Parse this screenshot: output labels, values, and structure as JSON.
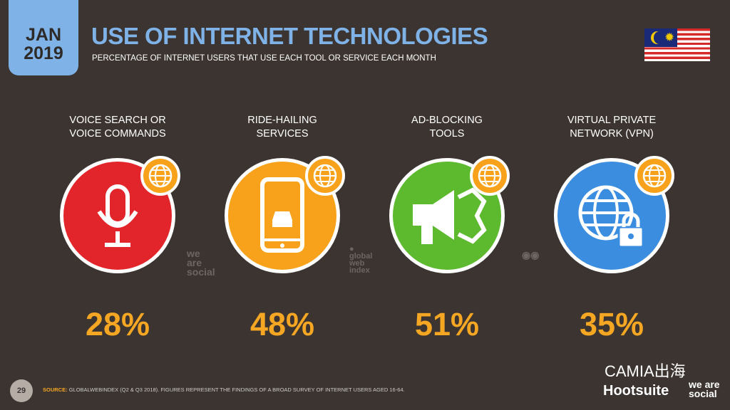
{
  "header": {
    "date_month": "JAN",
    "date_year": "2019",
    "title": "USE OF INTERNET TECHNOLOGIES",
    "subtitle": "PERCENTAGE OF INTERNET USERS THAT USE EACH TOOL OR SERVICE EACH MONTH"
  },
  "items": [
    {
      "label_1": "VOICE SEARCH OR",
      "label_2": "VOICE COMMANDS",
      "value": "28%",
      "color": "#e2252b",
      "icon": "microphone-icon"
    },
    {
      "label_1": "RIDE-HAILING",
      "label_2": "SERVICES",
      "value": "48%",
      "color": "#f7a21a",
      "icon": "smartphone-car-icon"
    },
    {
      "label_1": "AD-BLOCKING",
      "label_2": "TOOLS",
      "value": "51%",
      "color": "#5dba2f",
      "icon": "ad-blocking-megaphone-icon"
    },
    {
      "label_1": "VIRTUAL PRIVATE",
      "label_2": "NETWORK (VPN)",
      "value": "35%",
      "color": "#3b8de0",
      "icon": "globe-lock-icon"
    }
  ],
  "watermarks": {
    "we_are_social": "we are social",
    "gwi": "global web index"
  },
  "footer": {
    "page": "29",
    "source_label": "SOURCE:",
    "source_text": "GLOBALWEBINDEX (Q2 & Q3 2018). FIGURES REPRESENT THE FINDINGS OF A BROAD SURVEY OF INTERNET USERS AGED 16-64.",
    "overlay": "CAMIA出海",
    "hootsuite": "Hootsuite",
    "was": "we are social"
  },
  "colors": {
    "background": "#3b3431",
    "accent_blue": "#7fb3e8",
    "accent_orange": "#f5a623"
  }
}
